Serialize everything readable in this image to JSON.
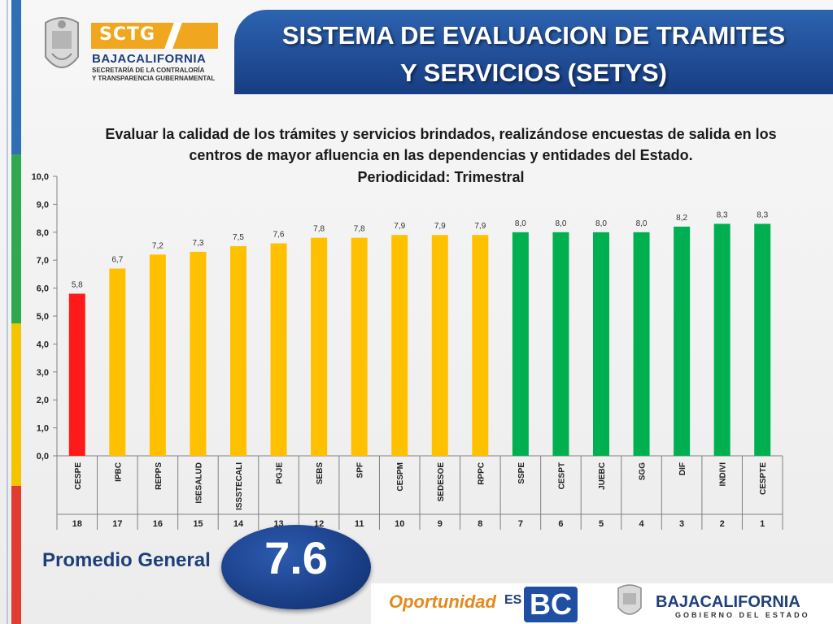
{
  "header": {
    "logo_badge": "SCTG",
    "brand": "BAJACALIFORNIA",
    "brand_sub1": "SECRETARÍA DE LA CONTRALORÍA",
    "brand_sub2": "Y TRANSPARENCIA GUBERNAMENTAL",
    "title_line1": "SISTEMA DE EVALUACION DE TRAMITES",
    "title_line2": "Y SERVICIOS (SETYS)"
  },
  "description": {
    "line1": "Evaluar la calidad de los trámites y servicios brindados, realizándose encuestas de salida en los",
    "line2": "centros de mayor afluencia en las dependencias y entidades del Estado.",
    "line3": "Periodicidad: Trimestral"
  },
  "average": {
    "label": "Promedio General",
    "value": "7.6"
  },
  "footer": {
    "oportunidad": "Oportunidad",
    "es": "ES",
    "bc": "BC",
    "brand": "BAJACALIFORNIA",
    "brand_sub": "GOBIERNO DEL ESTADO"
  },
  "colors": {
    "red": "#ff1a1a",
    "yellow": "#ffc000",
    "green": "#00b050"
  },
  "chart_data": {
    "type": "bar",
    "categories": [
      "CESPE",
      "IPBC",
      "REPPS",
      "ISESALUD",
      "ISSSTECALI",
      "PGJE",
      "SEBS",
      "SPF",
      "CESPM",
      "SEDESOE",
      "RPPC",
      "SSPE",
      "CESPT",
      "JUEBC",
      "SGG",
      "DIF",
      "INDIVI",
      "CESPTE"
    ],
    "values": [
      5.8,
      6.7,
      7.2,
      7.3,
      7.5,
      7.6,
      7.8,
      7.8,
      7.9,
      7.9,
      7.9,
      8.0,
      8.0,
      8.0,
      8.0,
      8.2,
      8.3,
      8.3
    ],
    "value_labels": [
      "5,8",
      "6,7",
      "7,2",
      "7,3",
      "7,5",
      "7,6",
      "7,8",
      "7,8",
      "7,9",
      "7,9",
      "7,9",
      "8,0",
      "8,0",
      "8,0",
      "8,0",
      "8,2",
      "8,3",
      "8,3"
    ],
    "bar_colors": [
      "red",
      "yellow",
      "yellow",
      "yellow",
      "yellow",
      "yellow",
      "yellow",
      "yellow",
      "yellow",
      "yellow",
      "yellow",
      "green",
      "green",
      "green",
      "green",
      "green",
      "green",
      "green"
    ],
    "ranks": [
      "18",
      "17",
      "16",
      "15",
      "14",
      "13",
      "12",
      "11",
      "10",
      "9",
      "8",
      "7",
      "6",
      "5",
      "4",
      "3",
      "2",
      "1"
    ],
    "ylim": [
      0,
      10
    ],
    "yticks": [
      "0,0",
      "1,0",
      "2,0",
      "3,0",
      "4,0",
      "5,0",
      "6,0",
      "7,0",
      "8,0",
      "9,0",
      "10,0"
    ],
    "title": "",
    "xlabel": "",
    "ylabel": "",
    "grid": false,
    "legend": "none"
  }
}
